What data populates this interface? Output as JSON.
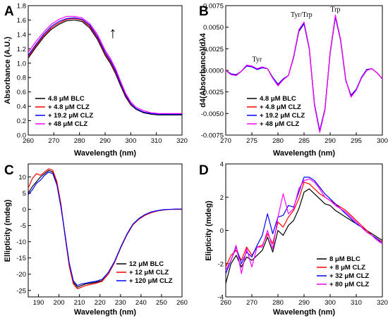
{
  "chart_data": [
    {
      "panel": "A",
      "type": "line",
      "xlabel": "Wavelength (nm)",
      "ylabel": "Absorbance (A.U.)",
      "xlim": [
        260,
        320
      ],
      "ylim": [
        0.0,
        1.8
      ],
      "xticks": [
        260,
        270,
        280,
        290,
        300,
        310,
        320
      ],
      "yticks": [
        0.0,
        0.2,
        0.4,
        0.6,
        0.8,
        1.0,
        1.2,
        1.4,
        1.6,
        1.8
      ],
      "ytick_decimals": 1,
      "legend_position": "bottom-left",
      "annotations": [
        {
          "text": "↑",
          "x": 293,
          "y": 1.35
        }
      ],
      "x": [
        260,
        263,
        266,
        269,
        272,
        275,
        278,
        281,
        284,
        287,
        290,
        292,
        294,
        296,
        298,
        300,
        302,
        305,
        308,
        311,
        314,
        317,
        320
      ],
      "series": [
        {
          "name": "4.8 μM BLC",
          "color": "#000000",
          "values": [
            1.07,
            1.22,
            1.36,
            1.47,
            1.54,
            1.59,
            1.6,
            1.58,
            1.49,
            1.33,
            1.11,
            1.0,
            0.86,
            0.69,
            0.53,
            0.42,
            0.36,
            0.31,
            0.29,
            0.28,
            0.28,
            0.28,
            0.28
          ]
        },
        {
          "name": "+ 4.8 μM CLZ",
          "color": "#ff0000",
          "values": [
            1.09,
            1.24,
            1.38,
            1.49,
            1.56,
            1.61,
            1.62,
            1.6,
            1.51,
            1.35,
            1.13,
            1.02,
            0.88,
            0.71,
            0.55,
            0.43,
            0.37,
            0.32,
            0.3,
            0.29,
            0.29,
            0.29,
            0.29
          ]
        },
        {
          "name": "+ 19.2 μM CLZ",
          "color": "#0000ff",
          "values": [
            1.11,
            1.26,
            1.4,
            1.51,
            1.58,
            1.62,
            1.63,
            1.61,
            1.53,
            1.37,
            1.15,
            1.04,
            0.9,
            0.72,
            0.56,
            0.44,
            0.37,
            0.32,
            0.3,
            0.29,
            0.29,
            0.29,
            0.29
          ]
        },
        {
          "name": "+ 48 μM CLZ",
          "color": "#ff00ff",
          "values": [
            1.15,
            1.3,
            1.43,
            1.54,
            1.61,
            1.65,
            1.65,
            1.63,
            1.55,
            1.4,
            1.18,
            1.07,
            0.93,
            0.75,
            0.58,
            0.46,
            0.39,
            0.34,
            0.31,
            0.3,
            0.3,
            0.3,
            0.3
          ]
        }
      ]
    },
    {
      "panel": "B",
      "type": "line",
      "xlabel": "Wavelength (nm)",
      "ylabel": "d4(Absorbance)/dλ4",
      "xlim": [
        270,
        300
      ],
      "ylim": [
        -0.0075,
        0.0075
      ],
      "xticks": [
        270,
        275,
        280,
        285,
        290,
        295,
        300
      ],
      "yticks": [
        -0.0075,
        -0.005,
        -0.0025,
        0.0,
        0.0025,
        0.005,
        0.0075
      ],
      "ytick_decimals": 4,
      "legend_position": "bottom-right",
      "annotations": [
        {
          "text": "Tyr",
          "x": 276,
          "y": 0.001
        },
        {
          "text": "Tyr/Trp",
          "x": 284.5,
          "y": 0.0062
        },
        {
          "text": "Trp",
          "x": 291,
          "y": 0.0068
        }
      ],
      "x": [
        270,
        271,
        272,
        273,
        274,
        275,
        276,
        277,
        278,
        279,
        280,
        281,
        282,
        283,
        284,
        285,
        286,
        287,
        288,
        289,
        290,
        291,
        292,
        293,
        294,
        295,
        296,
        297,
        298,
        299,
        300
      ],
      "series": [
        {
          "name": "4.8 μM BLC",
          "color": "#000000",
          "values": [
            0.0,
            -0.0004,
            -0.0006,
            -0.0001,
            0.0005,
            0.0005,
            0.0001,
            0.0003,
            0.0002,
            -0.0009,
            -0.0017,
            -0.001,
            -0.0006,
            0.0015,
            0.0045,
            0.0054,
            0.0025,
            -0.004,
            -0.007,
            -0.0045,
            0.002,
            0.0062,
            0.0035,
            -0.0012,
            -0.0029,
            -0.0022,
            -0.0009,
            0.0,
            0.0002,
            -0.0003,
            -0.001
          ]
        },
        {
          "name": "+ 4.8 μM CLZ",
          "color": "#ff0000",
          "values": [
            0.0,
            -0.0004,
            -0.0006,
            -0.0001,
            0.0006,
            0.0005,
            0.0001,
            0.0003,
            0.0002,
            -0.0009,
            -0.0017,
            -0.001,
            -0.0006,
            0.0016,
            0.0046,
            0.0055,
            0.0026,
            -0.004,
            -0.0071,
            -0.0046,
            0.0021,
            0.0063,
            0.0036,
            -0.0011,
            -0.003,
            -0.0023,
            -0.0009,
            0.0,
            0.0002,
            -0.0003,
            -0.001
          ]
        },
        {
          "name": "+ 19.2 μM CLZ",
          "color": "#0000ff",
          "values": [
            0.0,
            -0.0004,
            -0.0005,
            -0.0001,
            0.0005,
            0.0004,
            0.0001,
            0.0003,
            0.0002,
            -0.0008,
            -0.0016,
            -0.001,
            -0.0006,
            0.0015,
            0.0046,
            0.0054,
            0.0025,
            -0.0039,
            -0.007,
            -0.0045,
            0.002,
            0.0062,
            0.0035,
            -0.0012,
            -0.0029,
            -0.0022,
            -0.0008,
            0.0001,
            0.0002,
            -0.0003,
            -0.001
          ]
        },
        {
          "name": "+ 48 μM CLZ",
          "color": "#ff00ff",
          "values": [
            0.0,
            -0.0005,
            -0.0006,
            -0.0001,
            0.0006,
            0.0005,
            0.0002,
            0.0004,
            0.0002,
            -0.0009,
            -0.0018,
            -0.0011,
            -0.0006,
            0.0016,
            0.0047,
            0.0056,
            0.0026,
            -0.0041,
            -0.0072,
            -0.0046,
            0.0021,
            0.0064,
            0.0036,
            -0.0011,
            -0.0031,
            -0.0023,
            -0.0009,
            0.0,
            0.0002,
            -0.0003,
            -0.001
          ]
        }
      ]
    },
    {
      "panel": "C",
      "type": "line",
      "xlabel": "Wavelength (nm)",
      "ylabel": "Ellipticity (mdeg)",
      "xlim": [
        185,
        260
      ],
      "ylim": [
        -27,
        14
      ],
      "xticks": [
        190,
        200,
        210,
        220,
        230,
        240,
        250,
        260
      ],
      "yticks": [
        -25,
        -20,
        -15,
        -10,
        -5,
        0,
        5,
        10
      ],
      "ytick_decimals": 0,
      "legend_position": "bottom-right",
      "annotations": [],
      "x": [
        185,
        187,
        189,
        191,
        193,
        195,
        197,
        199,
        201,
        203,
        205,
        207,
        209,
        211,
        213,
        215,
        218,
        221,
        224,
        227,
        230,
        233,
        236,
        239,
        242,
        245,
        248,
        251,
        254,
        257,
        260
      ],
      "series": [
        {
          "name": "12 μM BLC",
          "color": "#000000",
          "values": [
            5.0,
            7.0,
            8.5,
            10.0,
            11.0,
            12.0,
            11.5,
            8.0,
            1.0,
            -8.0,
            -17.0,
            -22.5,
            -24.0,
            -23.5,
            -23.0,
            -22.8,
            -22.5,
            -22.0,
            -20.0,
            -16.5,
            -12.0,
            -8.0,
            -4.8,
            -3.0,
            -1.8,
            -1.0,
            -0.5,
            -0.2,
            0.0,
            0.0,
            0.0
          ]
        },
        {
          "name": "+ 12 μM CLZ",
          "color": "#ff0000",
          "values": [
            6.5,
            9.5,
            11.0,
            10.5,
            11.5,
            12.5,
            12.0,
            8.5,
            1.5,
            -8.5,
            -17.5,
            -23.0,
            -24.5,
            -24.0,
            -23.5,
            -23.2,
            -22.8,
            -22.2,
            -20.0,
            -16.5,
            -12.0,
            -8.0,
            -4.8,
            -3.0,
            -1.8,
            -1.0,
            -0.5,
            -0.2,
            0.0,
            0.0,
            0.0
          ]
        },
        {
          "name": "+ 120 μM CLZ",
          "color": "#0000ff",
          "values": [
            4.5,
            6.0,
            8.0,
            9.0,
            10.5,
            11.5,
            11.0,
            7.5,
            0.5,
            -8.0,
            -16.5,
            -22.0,
            -23.5,
            -23.0,
            -22.8,
            -22.5,
            -22.2,
            -21.6,
            -19.5,
            -16.2,
            -11.8,
            -7.8,
            -4.6,
            -2.8,
            -1.6,
            -0.8,
            -0.4,
            -0.1,
            0.0,
            0.1,
            0.1
          ]
        }
      ]
    },
    {
      "panel": "D",
      "type": "line",
      "xlabel": "Wavelength (nm)",
      "ylabel": "Elipticity (mdeg)",
      "xlim": [
        260,
        320
      ],
      "ylim": [
        -4,
        4
      ],
      "xticks": [
        260,
        270,
        280,
        290,
        300,
        310,
        320
      ],
      "yticks": [
        -4,
        -2,
        0,
        2,
        4
      ],
      "ytick_decimals": 0,
      "legend_position": "bottom-right",
      "annotations": [],
      "x": [
        260,
        262,
        264,
        266,
        268,
        270,
        272,
        274,
        276,
        278,
        280,
        282,
        284,
        286,
        288,
        290,
        292,
        294,
        296,
        298,
        300,
        302,
        304,
        306,
        308,
        310,
        312,
        314,
        316,
        318,
        320
      ],
      "series": [
        {
          "name": "8 μM BLC",
          "color": "#000000",
          "values": [
            -3.2,
            -2.0,
            -1.5,
            -2.2,
            -1.6,
            -1.8,
            -1.5,
            -1.2,
            -0.4,
            -1.3,
            0.0,
            -0.3,
            0.3,
            0.6,
            1.3,
            2.3,
            2.5,
            2.2,
            1.9,
            1.6,
            1.5,
            1.2,
            1.0,
            0.8,
            0.6,
            0.4,
            0.2,
            0.0,
            -0.2,
            -0.4,
            -0.6
          ]
        },
        {
          "name": "+ 8 μM CLZ",
          "color": "#ff0000",
          "values": [
            -2.2,
            -1.5,
            -1.2,
            -1.8,
            -1.0,
            -1.5,
            -1.0,
            -0.9,
            -0.2,
            -0.8,
            0.5,
            0.2,
            0.8,
            1.2,
            1.9,
            2.9,
            2.8,
            2.5,
            2.2,
            2.0,
            1.8,
            1.6,
            1.4,
            1.2,
            0.9,
            0.6,
            0.3,
            0.0,
            -0.3,
            -0.5,
            -0.7
          ]
        },
        {
          "name": "+ 32 μM CLZ",
          "color": "#0000ff",
          "values": [
            -2.6,
            -1.8,
            -1.0,
            -2.0,
            -1.3,
            -1.6,
            -0.9,
            -0.3,
            1.0,
            -0.2,
            0.8,
            0.9,
            1.5,
            1.4,
            2.3,
            3.2,
            3.2,
            3.0,
            2.6,
            2.2,
            1.9,
            1.6,
            1.3,
            1.0,
            0.7,
            0.4,
            0.2,
            -0.1,
            -0.3,
            -0.5,
            -0.8
          ]
        },
        {
          "name": "+ 80 μM CLZ",
          "color": "#ff00ff",
          "values": [
            -2.4,
            -1.8,
            -0.9,
            -2.6,
            -1.1,
            -2.2,
            -1.0,
            -1.0,
            0.0,
            -1.1,
            0.8,
            2.2,
            1.0,
            1.3,
            2.5,
            3.0,
            3.1,
            2.9,
            2.5,
            2.0,
            1.8,
            1.5,
            1.3,
            1.1,
            0.8,
            0.5,
            0.2,
            -0.1,
            -0.3,
            -0.6,
            -0.8
          ]
        }
      ]
    }
  ]
}
